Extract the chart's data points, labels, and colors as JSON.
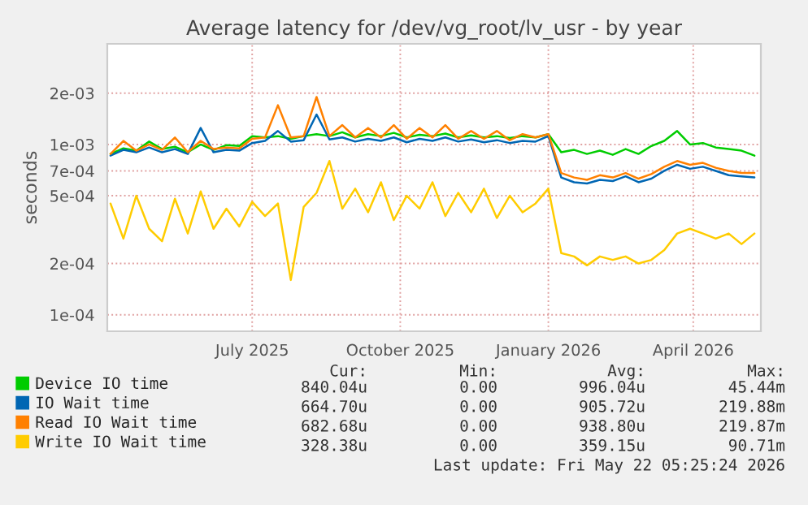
{
  "chart_data": {
    "type": "line",
    "title": "Average latency for /dev/vg_root/lv_usr - by year",
    "ylabel": "seconds",
    "log": "y",
    "grid": true,
    "legend": "bottom",
    "line_style": "solid",
    "marker": "none",
    "x": [
      "2025-04-04",
      "2025-04-12",
      "2025-04-20",
      "2025-04-28",
      "2025-05-06",
      "2025-05-14",
      "2025-05-22",
      "2025-05-30",
      "2025-06-07",
      "2025-06-15",
      "2025-06-23",
      "2025-07-01",
      "2025-07-09",
      "2025-07-17",
      "2025-07-25",
      "2025-08-02",
      "2025-08-10",
      "2025-08-18",
      "2025-08-26",
      "2025-09-03",
      "2025-09-11",
      "2025-09-19",
      "2025-09-27",
      "2025-10-05",
      "2025-10-13",
      "2025-10-21",
      "2025-10-29",
      "2025-11-06",
      "2025-11-14",
      "2025-11-22",
      "2025-11-30",
      "2025-12-08",
      "2025-12-16",
      "2025-12-24",
      "2026-01-01",
      "2026-01-09",
      "2026-01-17",
      "2026-01-25",
      "2026-02-02",
      "2026-02-10",
      "2026-02-18",
      "2026-02-26",
      "2026-03-06",
      "2026-03-14",
      "2026-03-22",
      "2026-03-30",
      "2026-04-07",
      "2026-04-15",
      "2026-04-23",
      "2026-05-01",
      "2026-05-09"
    ],
    "xlim": [
      "2025-04-02",
      "2026-05-13"
    ],
    "xticks": [
      {
        "value": "2025-07-01",
        "label": "July 2025"
      },
      {
        "value": "2025-10-01",
        "label": "October 2025"
      },
      {
        "value": "2026-01-01",
        "label": "January 2026"
      },
      {
        "value": "2026-04-01",
        "label": "April 2026"
      }
    ],
    "ylim": [
      8e-05,
      0.0039
    ],
    "yticks": [
      {
        "value": 0.0001,
        "label": "1e-04"
      },
      {
        "value": 0.0002,
        "label": "2e-04"
      },
      {
        "value": 0.0005,
        "label": "5e-04"
      },
      {
        "value": 0.0007,
        "label": "7e-04"
      },
      {
        "value": 0.001,
        "label": "1e-03"
      },
      {
        "value": 0.002,
        "label": "2e-03"
      }
    ],
    "series": [
      {
        "name": "Device IO time",
        "color": "#00cc00",
        "values": [
          0.00088,
          0.00095,
          0.00092,
          0.00104,
          0.00094,
          0.00097,
          0.0009,
          0.001,
          0.00093,
          0.00099,
          0.00098,
          0.00112,
          0.0011,
          0.00112,
          0.00108,
          0.00112,
          0.00115,
          0.00112,
          0.00118,
          0.0011,
          0.00115,
          0.00112,
          0.00117,
          0.0011,
          0.00114,
          0.00112,
          0.00116,
          0.0011,
          0.00113,
          0.0011,
          0.00112,
          0.00109,
          0.00112,
          0.0011,
          0.00115,
          0.0009,
          0.00093,
          0.00088,
          0.00092,
          0.00087,
          0.00094,
          0.00088,
          0.00098,
          0.00105,
          0.0012,
          0.001,
          0.00102,
          0.00096,
          0.00094,
          0.00092,
          0.00086
        ]
      },
      {
        "name": "IO Wait time",
        "color": "#0066b3",
        "values": [
          0.00086,
          0.00093,
          0.0009,
          0.00096,
          0.0009,
          0.00094,
          0.00088,
          0.00125,
          0.0009,
          0.00093,
          0.00092,
          0.00102,
          0.00105,
          0.0012,
          0.00104,
          0.00106,
          0.0015,
          0.00107,
          0.0011,
          0.00104,
          0.00108,
          0.00105,
          0.0011,
          0.00103,
          0.00108,
          0.00105,
          0.0011,
          0.00104,
          0.00107,
          0.00103,
          0.00106,
          0.00102,
          0.00105,
          0.00104,
          0.00112,
          0.00064,
          0.0006,
          0.00059,
          0.00062,
          0.00061,
          0.00065,
          0.0006,
          0.00063,
          0.0007,
          0.00076,
          0.00072,
          0.00074,
          0.0007,
          0.00066,
          0.00065,
          0.00064
        ]
      },
      {
        "name": "Read IO Wait time",
        "color": "#ff8000",
        "values": [
          0.00088,
          0.00105,
          0.00092,
          0.001,
          0.00093,
          0.0011,
          0.0009,
          0.00105,
          0.00094,
          0.00096,
          0.00095,
          0.00108,
          0.0011,
          0.0017,
          0.0011,
          0.00112,
          0.0019,
          0.00112,
          0.0013,
          0.0011,
          0.00125,
          0.0011,
          0.0013,
          0.00108,
          0.00125,
          0.0011,
          0.0013,
          0.00108,
          0.0012,
          0.00108,
          0.0012,
          0.00106,
          0.00115,
          0.0011,
          0.00115,
          0.00068,
          0.00064,
          0.00062,
          0.00066,
          0.00064,
          0.00068,
          0.00063,
          0.00067,
          0.00074,
          0.0008,
          0.00076,
          0.00078,
          0.00073,
          0.0007,
          0.00068,
          0.00068
        ]
      },
      {
        "name": "Write IO Wait time",
        "color": "#ffcc00",
        "values": [
          0.00045,
          0.00028,
          0.0005,
          0.00032,
          0.00027,
          0.00048,
          0.0003,
          0.00053,
          0.00032,
          0.00042,
          0.00033,
          0.00046,
          0.00038,
          0.00045,
          0.00016,
          0.00043,
          0.00052,
          0.0008,
          0.00042,
          0.00055,
          0.0004,
          0.0006,
          0.00036,
          0.0005,
          0.00042,
          0.0006,
          0.00038,
          0.00052,
          0.0004,
          0.00055,
          0.00037,
          0.0005,
          0.0004,
          0.00045,
          0.00055,
          0.00023,
          0.00022,
          0.000195,
          0.00022,
          0.00021,
          0.00022,
          0.0002,
          0.00021,
          0.00024,
          0.0003,
          0.00032,
          0.0003,
          0.00028,
          0.0003,
          0.00026,
          0.0003
        ]
      }
    ],
    "annotations": [
      "Cur:",
      "Min:",
      "Avg:",
      "Max:",
      "840.04u",
      "0.00",
      "996.04u",
      "45.44m",
      "664.70u",
      "0.00",
      "905.72u",
      "219.88m",
      "682.68u",
      "0.00",
      "938.80u",
      "219.87m",
      "328.38u",
      "0.00",
      "359.15u",
      "90.71m",
      "Last update: Fri May 22 05:25:24 2026"
    ]
  }
}
